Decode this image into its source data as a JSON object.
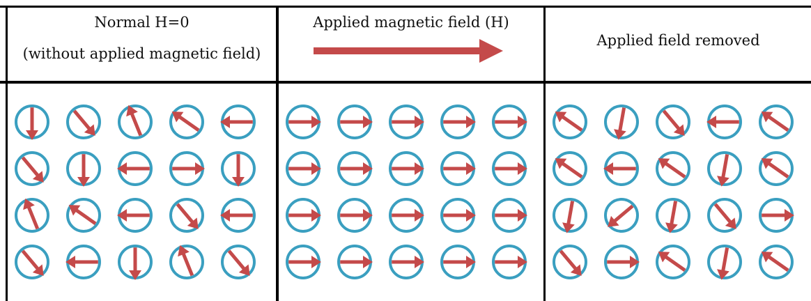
{
  "headers": {
    "normal": {
      "line1": "Normal H=0",
      "line2": "(without applied magnetic field)"
    },
    "applied": {
      "line1": "Applied magnetic field (H)"
    },
    "removed": {
      "line1": "Applied field removed"
    }
  },
  "colors": {
    "circle": "#3a9fc0",
    "arrow": "#c44a4a",
    "border": "#000000"
  },
  "domains": {
    "normal": [
      [
        "down",
        "down-right",
        "up-left-steep",
        "up-left",
        "left"
      ],
      [
        "down-right",
        "down",
        "left",
        "right",
        "down"
      ],
      [
        "up-left-steep",
        "up-left",
        "left",
        "down-right",
        "left"
      ],
      [
        "down-right",
        "left",
        "down",
        "up-left-steep",
        "down-right"
      ]
    ],
    "applied": [
      [
        "right",
        "right",
        "right",
        "right",
        "right"
      ],
      [
        "right",
        "right",
        "right",
        "right",
        "right"
      ],
      [
        "right",
        "right",
        "right",
        "right",
        "right"
      ],
      [
        "right",
        "right",
        "right",
        "right",
        "right"
      ]
    ],
    "removed": [
      [
        "up-left",
        "down-slight",
        "down-right",
        "left",
        "up-left"
      ],
      [
        "up-left",
        "left",
        "up-left",
        "down-slight",
        "up-left"
      ],
      [
        "down-slight",
        "down-left",
        "down-slight",
        "down-right",
        "right"
      ],
      [
        "down-right",
        "right",
        "up-left",
        "down-slight",
        "up-left"
      ]
    ]
  }
}
